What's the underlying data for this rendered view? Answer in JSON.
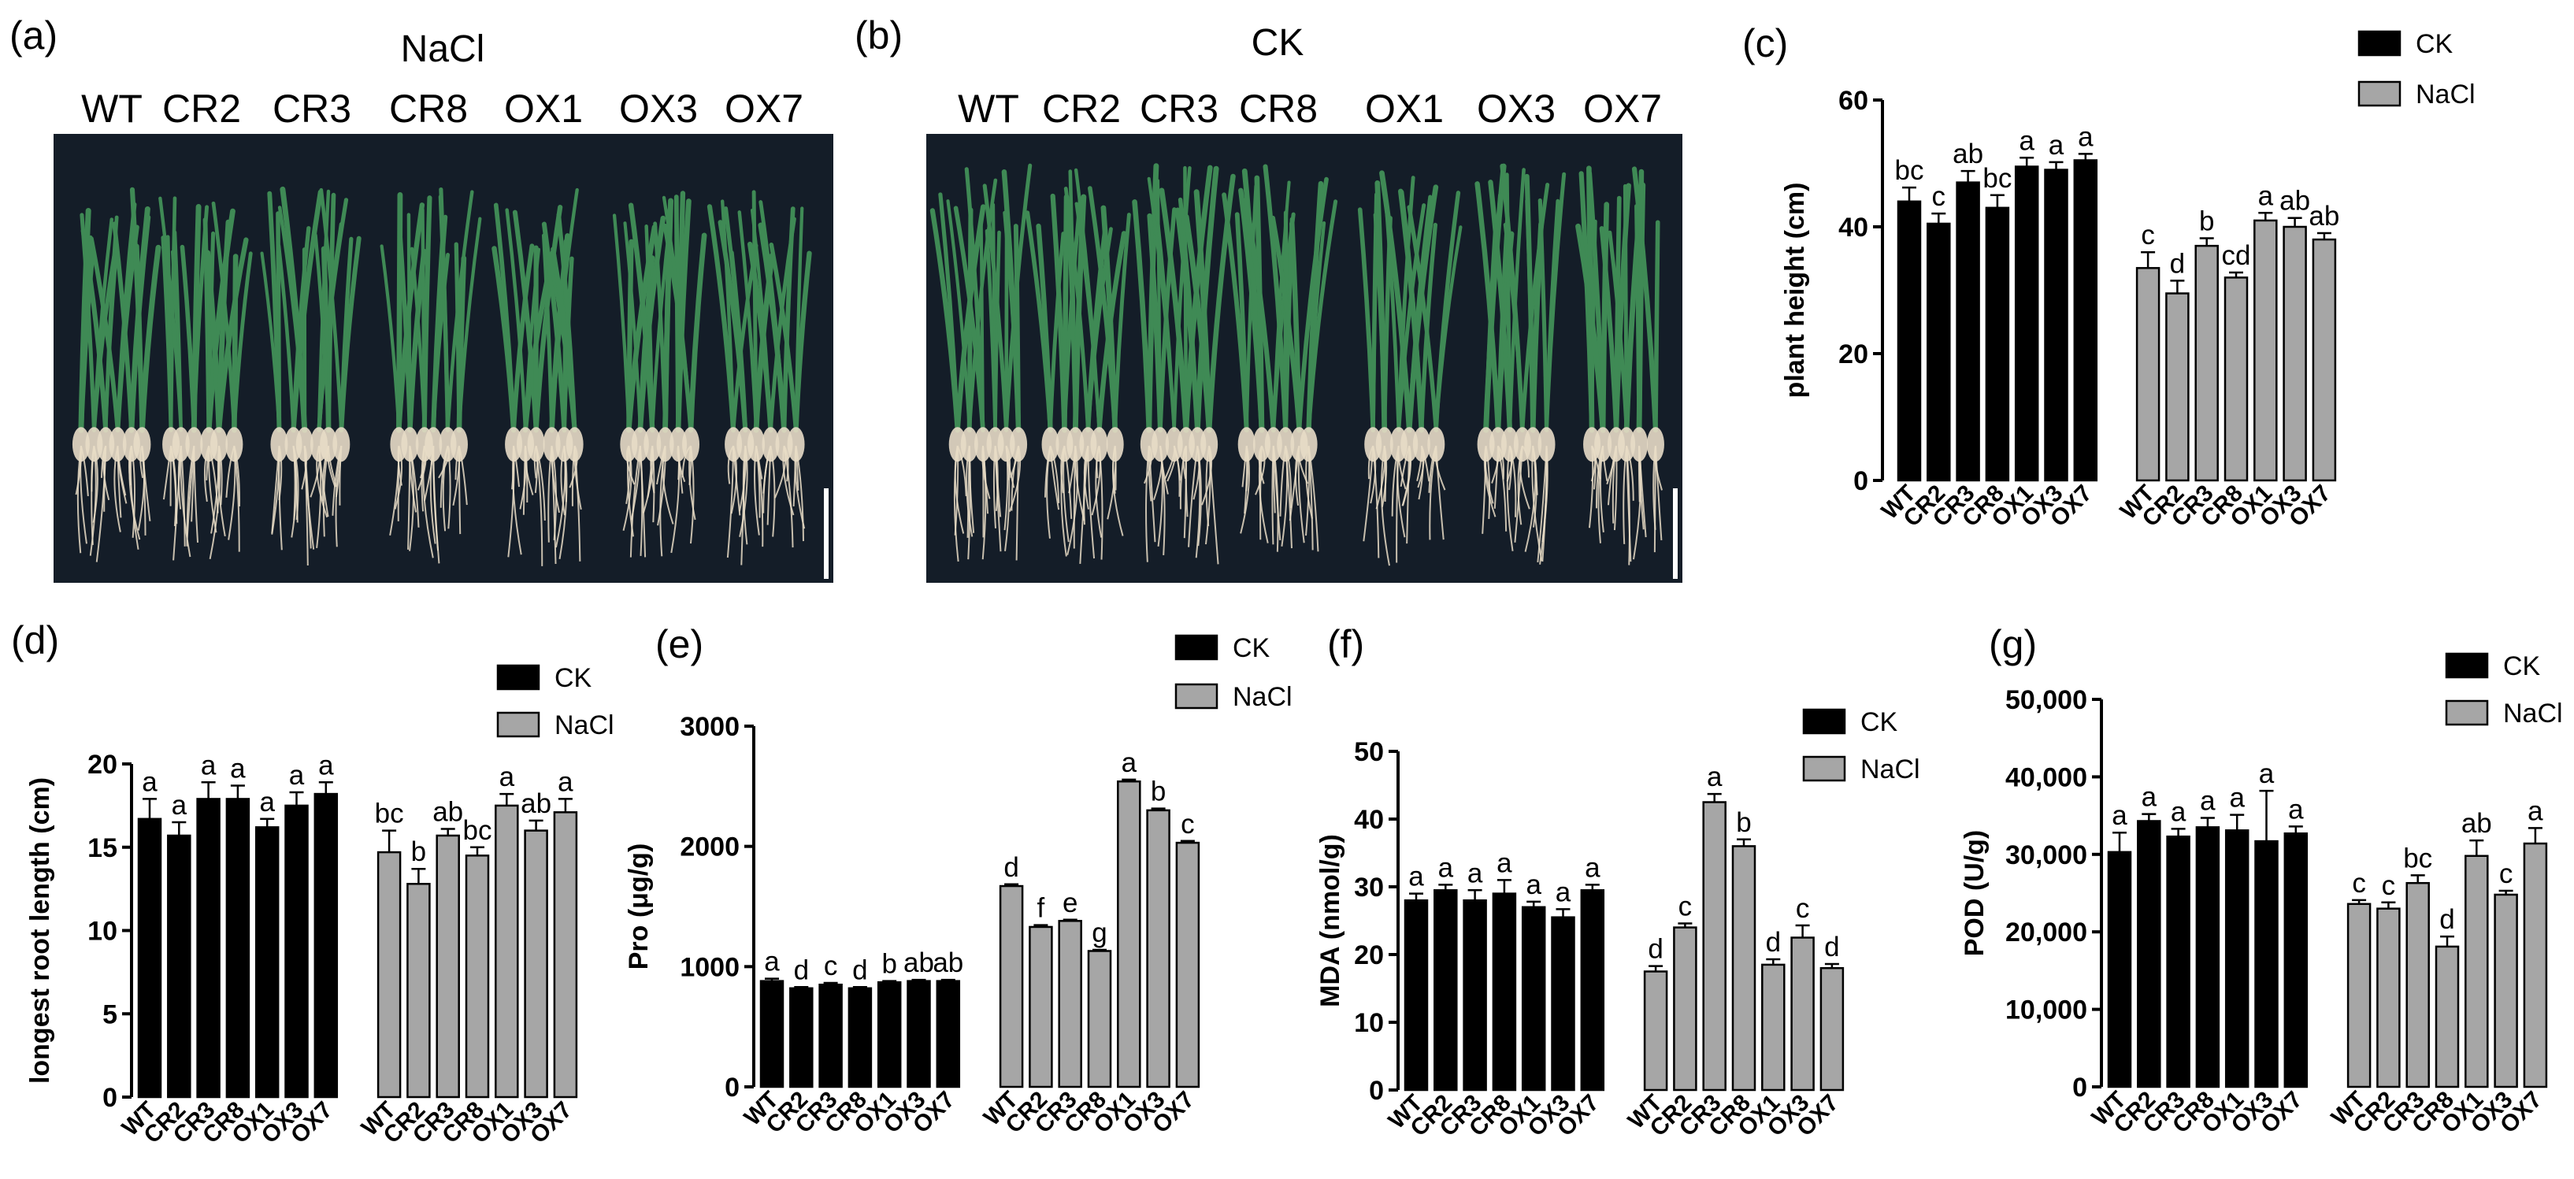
{
  "panels": {
    "a": {
      "label": "(a)",
      "title": "NaCl",
      "genotypes": [
        "WT",
        "CR2",
        "CR3",
        "CR8",
        "OX1",
        "OX3",
        "OX7"
      ]
    },
    "b": {
      "label": "(b)",
      "title": "CK",
      "genotypes": [
        "WT",
        "CR2",
        "CR3",
        "CR8",
        "OX1",
        "OX3",
        "OX7"
      ]
    }
  },
  "colors": {
    "ck": "#000000",
    "nacl": "#a6a6a6",
    "photo_bg": "#141d28",
    "leaf": "#3f8a55",
    "root": "#e7dcc6"
  },
  "chart_data": [
    {
      "id": "c",
      "panel_label": "(c)",
      "type": "bar",
      "categories": [
        "WT",
        "CR2",
        "CR3",
        "CR8",
        "OX1",
        "OX3",
        "OX7"
      ],
      "ylabel": "plant height (cm)",
      "ylim": [
        0,
        60
      ],
      "yticks": [
        0,
        20,
        40,
        60
      ],
      "ytick_labels": [
        "0",
        "20",
        "40",
        "60"
      ],
      "legend": [
        "CK",
        "NaCl"
      ],
      "series": [
        {
          "name": "CK",
          "values": [
            44,
            40.5,
            47,
            43,
            49.5,
            49,
            50.5
          ],
          "errors": [
            2.2,
            1.6,
            1.8,
            2.0,
            1.4,
            1.2,
            1.0
          ],
          "letters": [
            "bc",
            "c",
            "ab",
            "bc",
            "a",
            "a",
            "a"
          ]
        },
        {
          "name": "NaCl",
          "values": [
            33.5,
            29.5,
            37,
            32,
            41,
            40,
            38
          ],
          "errors": [
            2.5,
            2.0,
            1.2,
            0.8,
            1.2,
            1.4,
            1.0
          ],
          "letters": [
            "c",
            "d",
            "b",
            "cd",
            "a",
            "ab",
            "ab"
          ]
        }
      ]
    },
    {
      "id": "d",
      "panel_label": "(d)",
      "type": "bar",
      "categories": [
        "WT",
        "CR2",
        "CR3",
        "CR8",
        "OX1",
        "OX3",
        "OX7"
      ],
      "ylabel": "longest root length (cm)",
      "ylim": [
        0,
        20
      ],
      "yticks": [
        0,
        5,
        10,
        15,
        20
      ],
      "ytick_labels": [
        "0",
        "5",
        "10",
        "15",
        "20"
      ],
      "legend": [
        "CK",
        "NaCl"
      ],
      "series": [
        {
          "name": "CK",
          "values": [
            16.7,
            15.7,
            17.9,
            17.9,
            16.2,
            17.5,
            18.2
          ],
          "errors": [
            1.2,
            0.8,
            1.0,
            0.8,
            0.5,
            0.8,
            0.7
          ],
          "letters": [
            "a",
            "a",
            "a",
            "a",
            "a",
            "a",
            "a"
          ]
        },
        {
          "name": "NaCl",
          "values": [
            14.7,
            12.8,
            15.7,
            14.5,
            17.5,
            16.0,
            17.1
          ],
          "errors": [
            1.3,
            0.9,
            0.4,
            0.5,
            0.7,
            0.6,
            0.8
          ],
          "letters": [
            "bc",
            "b",
            "ab",
            "bc",
            "a",
            "ab",
            "a"
          ]
        }
      ]
    },
    {
      "id": "e",
      "panel_label": "(e)",
      "type": "bar",
      "categories": [
        "WT",
        "CR2",
        "CR3",
        "CR8",
        "OX1",
        "OX3",
        "OX7"
      ],
      "ylabel": "Pro (μg/g)",
      "ylim": [
        0,
        3000
      ],
      "yticks": [
        0,
        1000,
        2000,
        3000
      ],
      "ytick_labels": [
        "0",
        "1000",
        "2000",
        "3000"
      ],
      "legend": [
        "CK",
        "NaCl"
      ],
      "series": [
        {
          "name": "CK",
          "values": [
            880,
            820,
            850,
            820,
            870,
            880,
            880
          ],
          "errors": [
            20,
            10,
            15,
            10,
            10,
            10,
            10
          ],
          "letters": [
            "a",
            "d",
            "c",
            "d",
            "b",
            "ab",
            "ab"
          ]
        },
        {
          "name": "NaCl",
          "values": [
            1670,
            1330,
            1380,
            1130,
            2540,
            2300,
            2030
          ],
          "errors": [
            15,
            15,
            10,
            10,
            15,
            15,
            15
          ],
          "letters": [
            "d",
            "f",
            "e",
            "g",
            "a",
            "b",
            "c"
          ]
        }
      ]
    },
    {
      "id": "f",
      "panel_label": "(f)",
      "type": "bar",
      "categories": [
        "WT",
        "CR2",
        "CR3",
        "CR8",
        "OX1",
        "OX3",
        "OX7"
      ],
      "ylabel": "MDA (nmol/g)",
      "ylim": [
        0,
        50
      ],
      "yticks": [
        0,
        10,
        20,
        30,
        40,
        50
      ],
      "ytick_labels": [
        "0",
        "10",
        "20",
        "30",
        "40",
        "50"
      ],
      "legend": [
        "CK",
        "NaCl"
      ],
      "series": [
        {
          "name": "CK",
          "values": [
            28,
            29.5,
            28,
            29,
            27,
            25.5,
            29.5
          ],
          "errors": [
            1.0,
            0.8,
            1.5,
            2.0,
            0.8,
            1.2,
            0.8
          ],
          "letters": [
            "a",
            "a",
            "a",
            "a",
            "a",
            "a",
            "a"
          ]
        },
        {
          "name": "NaCl",
          "values": [
            17.5,
            24,
            42.5,
            36,
            18.5,
            22.5,
            18
          ],
          "errors": [
            0.8,
            0.6,
            1.2,
            1.0,
            0.8,
            1.8,
            0.6
          ],
          "letters": [
            "d",
            "c",
            "a",
            "b",
            "d",
            "c",
            "d"
          ]
        }
      ]
    },
    {
      "id": "g",
      "panel_label": "(g)",
      "type": "bar",
      "categories": [
        "WT",
        "CR2",
        "CR3",
        "CR8",
        "OX1",
        "OX3",
        "OX7"
      ],
      "ylabel": "POD (U/g)",
      "ylim": [
        0,
        50000
      ],
      "yticks": [
        0,
        10000,
        20000,
        30000,
        40000,
        50000
      ],
      "ytick_labels": [
        "0",
        "10,000",
        "20,000",
        "30,000",
        "40,000",
        "50,000"
      ],
      "legend": [
        "CK",
        "NaCl"
      ],
      "series": [
        {
          "name": "CK",
          "values": [
            30300,
            34300,
            32300,
            33500,
            33100,
            31700,
            32700
          ],
          "errors": [
            2500,
            900,
            1000,
            1200,
            2000,
            6500,
            900
          ],
          "letters": [
            "a",
            "a",
            "a",
            "a",
            "a",
            "a",
            "a"
          ]
        },
        {
          "name": "NaCl",
          "values": [
            23600,
            23000,
            26300,
            18100,
            29800,
            24800,
            31400
          ],
          "errors": [
            500,
            800,
            1000,
            1300,
            2000,
            500,
            2000
          ],
          "letters": [
            "c",
            "c",
            "bc",
            "d",
            "ab",
            "c",
            "a"
          ]
        }
      ]
    }
  ]
}
